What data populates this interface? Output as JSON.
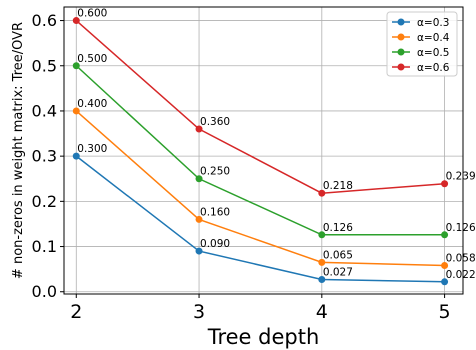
{
  "chart_data": {
    "type": "line",
    "title": "",
    "xlabel": "Tree depth",
    "ylabel": "# non-zeros in weight matrix: Tree/OVR",
    "x": [
      2,
      3,
      4,
      5
    ],
    "x_ticks": [
      "2",
      "3",
      "4",
      "5"
    ],
    "y_ticks": [
      "0.0",
      "0.1",
      "0.2",
      "0.3",
      "0.4",
      "0.5",
      "0.6"
    ],
    "xlim": [
      1.9,
      5.15
    ],
    "ylim": [
      -0.005,
      0.63
    ],
    "grid": true,
    "legend_position": "top-right",
    "series": [
      {
        "name": "α=0.3",
        "color": "#1f77b4",
        "values": [
          0.3,
          0.09,
          0.027,
          0.022
        ],
        "labels": [
          "0.300",
          "0.090",
          "0.027",
          "0.022"
        ]
      },
      {
        "name": "α=0.4",
        "color": "#ff7f0e",
        "values": [
          0.4,
          0.16,
          0.065,
          0.058
        ],
        "labels": [
          "0.400",
          "0.160",
          "0.065",
          "0.058"
        ]
      },
      {
        "name": "α=0.5",
        "color": "#2ca02c",
        "values": [
          0.5,
          0.25,
          0.126,
          0.126
        ],
        "labels": [
          "0.500",
          "0.250",
          "0.126",
          "0.126"
        ]
      },
      {
        "name": "α=0.6",
        "color": "#d62728",
        "values": [
          0.6,
          0.36,
          0.218,
          0.239
        ],
        "labels": [
          "0.600",
          "0.360",
          "0.218",
          "0.239"
        ]
      }
    ]
  }
}
